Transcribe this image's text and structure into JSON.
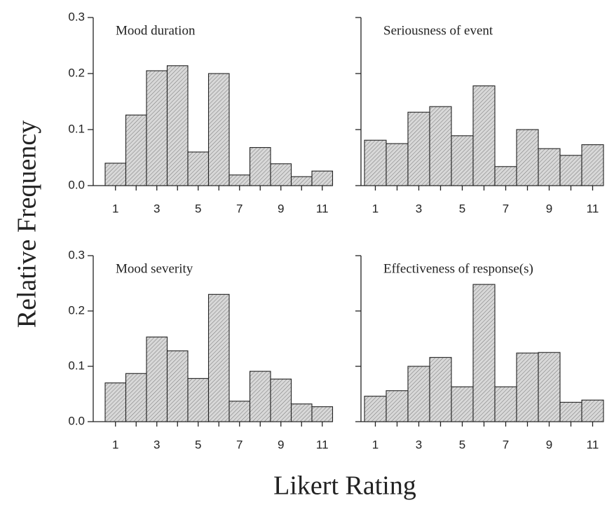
{
  "ylabel": "Relative Frequency",
  "xlabel": "Likert Rating",
  "chart_data": [
    {
      "type": "bar",
      "title": "Mood duration",
      "categories": [
        1,
        null,
        3,
        null,
        5,
        null,
        7,
        null,
        9,
        null,
        11
      ],
      "values": [
        0.04,
        0.126,
        0.205,
        0.214,
        0.06,
        0.2,
        0.019,
        0.068,
        0.039,
        0.016,
        0.026
      ],
      "ylim": [
        0,
        0.3
      ],
      "yticks": [
        {
          "value": 0,
          "label": "0.0"
        },
        0.1,
        0.2,
        0.3
      ],
      "show_ytick_labels": true,
      "color": "#d8d8d8"
    },
    {
      "type": "bar",
      "title": "Seriousness of event",
      "categories": [
        1,
        null,
        3,
        null,
        5,
        null,
        7,
        null,
        9,
        null,
        11
      ],
      "values": [
        0.081,
        0.075,
        0.131,
        0.141,
        0.089,
        0.178,
        0.034,
        0.1,
        0.066,
        0.054,
        0.073
      ],
      "ylim": [
        0,
        0.3
      ],
      "yticks": [
        {
          "value": 0,
          "label": "0.0"
        },
        0.1,
        0.2,
        0.3
      ],
      "show_ytick_labels": false,
      "color": "#d8d8d8"
    },
    {
      "type": "bar",
      "title": "Mood severity",
      "categories": [
        1,
        null,
        3,
        null,
        5,
        null,
        7,
        null,
        9,
        null,
        11
      ],
      "values": [
        0.07,
        0.087,
        0.153,
        0.128,
        0.078,
        0.23,
        0.037,
        0.091,
        0.077,
        0.032,
        0.027
      ],
      "ylim": [
        0,
        0.3
      ],
      "yticks": [
        {
          "value": 0,
          "label": "0.0"
        },
        0.1,
        0.2,
        0.3
      ],
      "show_ytick_labels": true,
      "color": "#d8d8d8"
    },
    {
      "type": "bar",
      "title": "Effectiveness of response(s)",
      "categories": [
        1,
        null,
        3,
        null,
        5,
        null,
        7,
        null,
        9,
        null,
        11
      ],
      "values": [
        0.046,
        0.056,
        0.1,
        0.116,
        0.063,
        0.248,
        0.063,
        0.124,
        0.125,
        0.035,
        0.039
      ],
      "ylim": [
        0,
        0.3
      ],
      "yticks": [
        {
          "value": 0,
          "label": "0.0"
        },
        0.1,
        0.2,
        0.3
      ],
      "show_ytick_labels": false,
      "color": "#d8d8d8"
    }
  ]
}
